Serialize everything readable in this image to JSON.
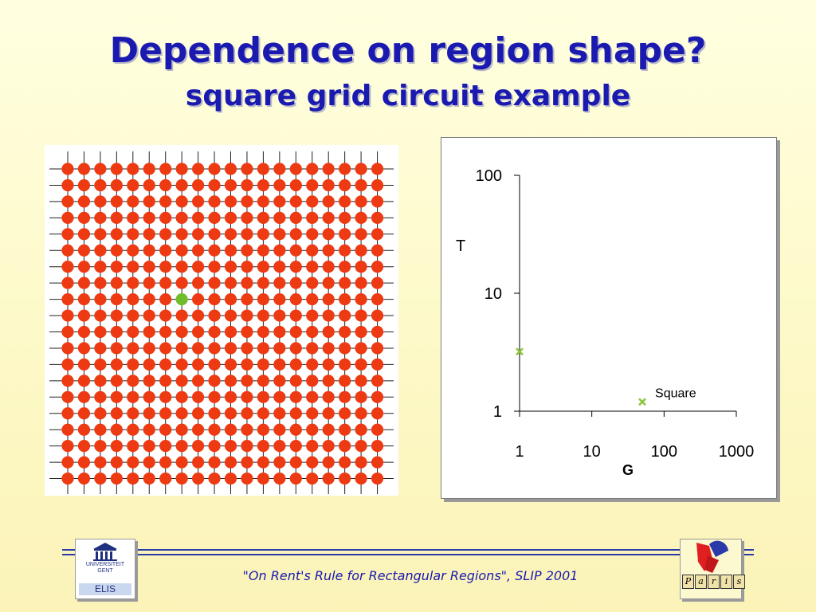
{
  "slide": {
    "title": "Dependence on region shape?",
    "subtitle": "square grid circuit example",
    "footer": "\"On Rent's Rule for Rectangular Regions\", SLIP 2001",
    "logo_left": {
      "line1": "UNIVERSITEIT",
      "line2": "GENT",
      "label": "ELIS"
    },
    "logo_right": {
      "letters": [
        "P",
        "a",
        "r",
        "i",
        "s"
      ]
    }
  },
  "grid": {
    "rows": 20,
    "cols": 20,
    "highlight": {
      "row": 8,
      "col": 7
    },
    "node_color": "#ee3a12",
    "highlight_color": "#6fbd2c"
  },
  "chart_data": {
    "type": "scatter",
    "xlabel": "G",
    "ylabel": "T",
    "xscale": "log",
    "yscale": "log",
    "xlim": [
      1,
      1000
    ],
    "ylim": [
      1,
      100
    ],
    "xticks": [
      "1",
      "10",
      "100",
      "1000"
    ],
    "yticks": [
      "1",
      "10",
      "100"
    ],
    "marker": "x",
    "marker_color": "#8ec63f",
    "points": [
      {
        "x": 1,
        "y": 3.2,
        "label": ""
      },
      {
        "x": 50,
        "y": 1.2,
        "label": "Square"
      }
    ]
  }
}
